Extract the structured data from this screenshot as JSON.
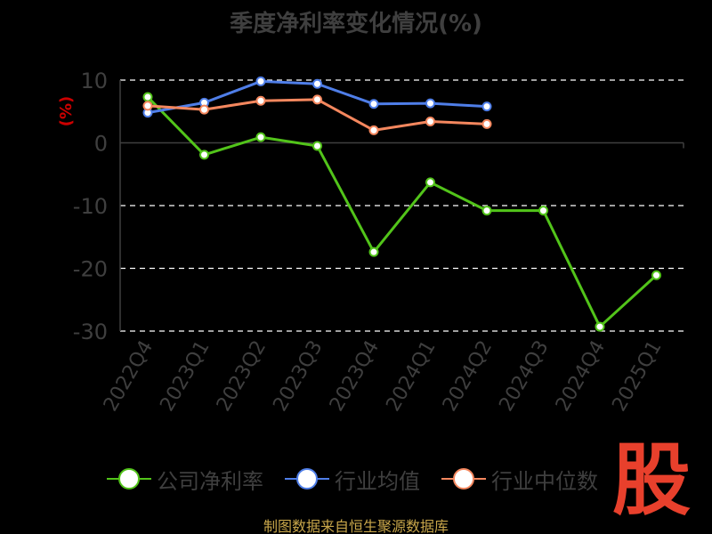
{
  "title": "季度净利率变化情况(%)",
  "source_note": "制图数据来自恒生聚源数据库",
  "logo_text": "股",
  "colors": {
    "background": "#000000",
    "axis": "#3f3f3f",
    "grid": "#ffffff",
    "ylabel": "#cc0000",
    "company": "#52c41a",
    "industry_avg": "#4f7ee8",
    "industry_median": "#f4875e",
    "source_note": "#c8a64a",
    "logo": "#e8402c"
  },
  "legend": [
    {
      "label": "公司净利率",
      "color": "#52c41a"
    },
    {
      "label": "行业均值",
      "color": "#4f7ee8"
    },
    {
      "label": "行业中位数",
      "color": "#f4875e"
    }
  ],
  "chart_data": {
    "type": "line",
    "title": "季度净利率变化情况(%)",
    "xlabel": "",
    "ylabel": "(%)",
    "categories": [
      "2022Q4",
      "2023Q1",
      "2023Q2",
      "2023Q3",
      "2023Q4",
      "2024Q1",
      "2024Q2",
      "2024Q3",
      "2024Q4",
      "2025Q1"
    ],
    "ylim": [
      -30,
      10
    ],
    "yticks": [
      10,
      0,
      -10,
      -20,
      -30
    ],
    "grid": "horizontal dashed",
    "legend_position": "bottom",
    "series": [
      {
        "name": "公司净利率",
        "values": [
          7.3,
          -1.9,
          0.9,
          -0.5,
          -17.4,
          -6.3,
          -10.8,
          -10.8,
          -29.3,
          -21.1
        ]
      },
      {
        "name": "行业均值",
        "values": [
          4.8,
          6.4,
          9.8,
          9.4,
          6.2,
          6.3,
          5.8,
          null,
          null,
          null
        ]
      },
      {
        "name": "行业中位数",
        "values": [
          5.9,
          5.3,
          6.7,
          6.9,
          2.0,
          3.4,
          3.0,
          null,
          null,
          null
        ]
      }
    ]
  }
}
